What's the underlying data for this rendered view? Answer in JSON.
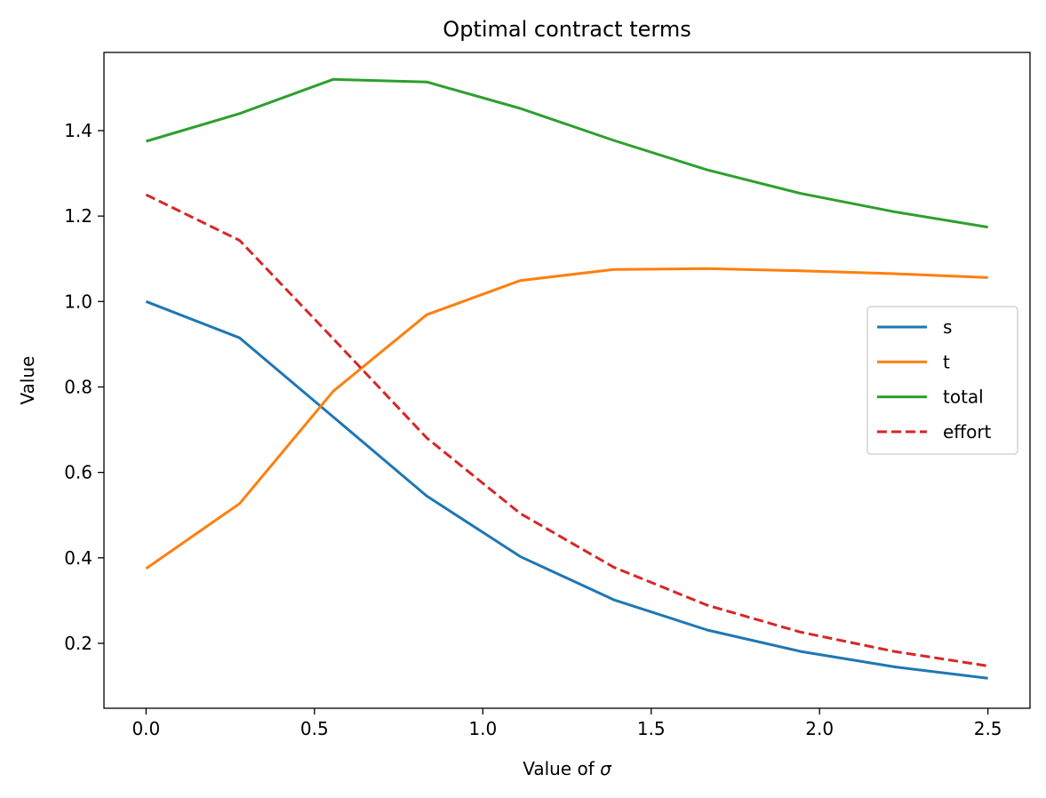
{
  "chart_data": {
    "type": "line",
    "title": "Optimal contract terms",
    "xlabel_prefix": "Value of ",
    "xlabel_symbol": "σ",
    "ylabel": "Value",
    "xlim": [
      -0.125,
      2.625
    ],
    "ylim": [
      0.048,
      1.583
    ],
    "xticks": [
      0.0,
      0.5,
      1.0,
      1.5,
      2.0,
      2.5
    ],
    "xtick_labels": [
      "0.0",
      "0.5",
      "1.0",
      "1.5",
      "2.0",
      "2.5"
    ],
    "yticks": [
      0.2,
      0.4,
      0.6,
      0.8,
      1.0,
      1.2,
      1.4
    ],
    "ytick_labels": [
      "0.2",
      "0.4",
      "0.6",
      "0.8",
      "1.0",
      "1.2",
      "1.4"
    ],
    "grid": false,
    "legend_position": "center-right",
    "x": [
      0.0,
      0.2778,
      0.5556,
      0.8333,
      1.1111,
      1.3889,
      1.6667,
      1.9444,
      2.2222,
      2.5
    ],
    "series": [
      {
        "name": "s",
        "color": "#1f77b4",
        "dash": "solid",
        "values": [
          1.0,
          0.915,
          0.73,
          0.545,
          0.403,
          0.302,
          0.231,
          0.181,
          0.145,
          0.118
        ]
      },
      {
        "name": "t",
        "color": "#ff7f0e",
        "dash": "solid",
        "values": [
          0.375,
          0.527,
          0.79,
          0.969,
          1.049,
          1.075,
          1.077,
          1.072,
          1.065,
          1.056
        ]
      },
      {
        "name": "total",
        "color": "#2ca02c",
        "dash": "solid",
        "values": [
          1.375,
          1.44,
          1.52,
          1.514,
          1.452,
          1.377,
          1.308,
          1.253,
          1.21,
          1.174
        ]
      },
      {
        "name": "effort",
        "color": "#d62728",
        "dash": "dashed",
        "values": [
          1.25,
          1.143,
          0.913,
          0.681,
          0.504,
          0.378,
          0.289,
          0.226,
          0.181,
          0.147
        ]
      }
    ]
  }
}
